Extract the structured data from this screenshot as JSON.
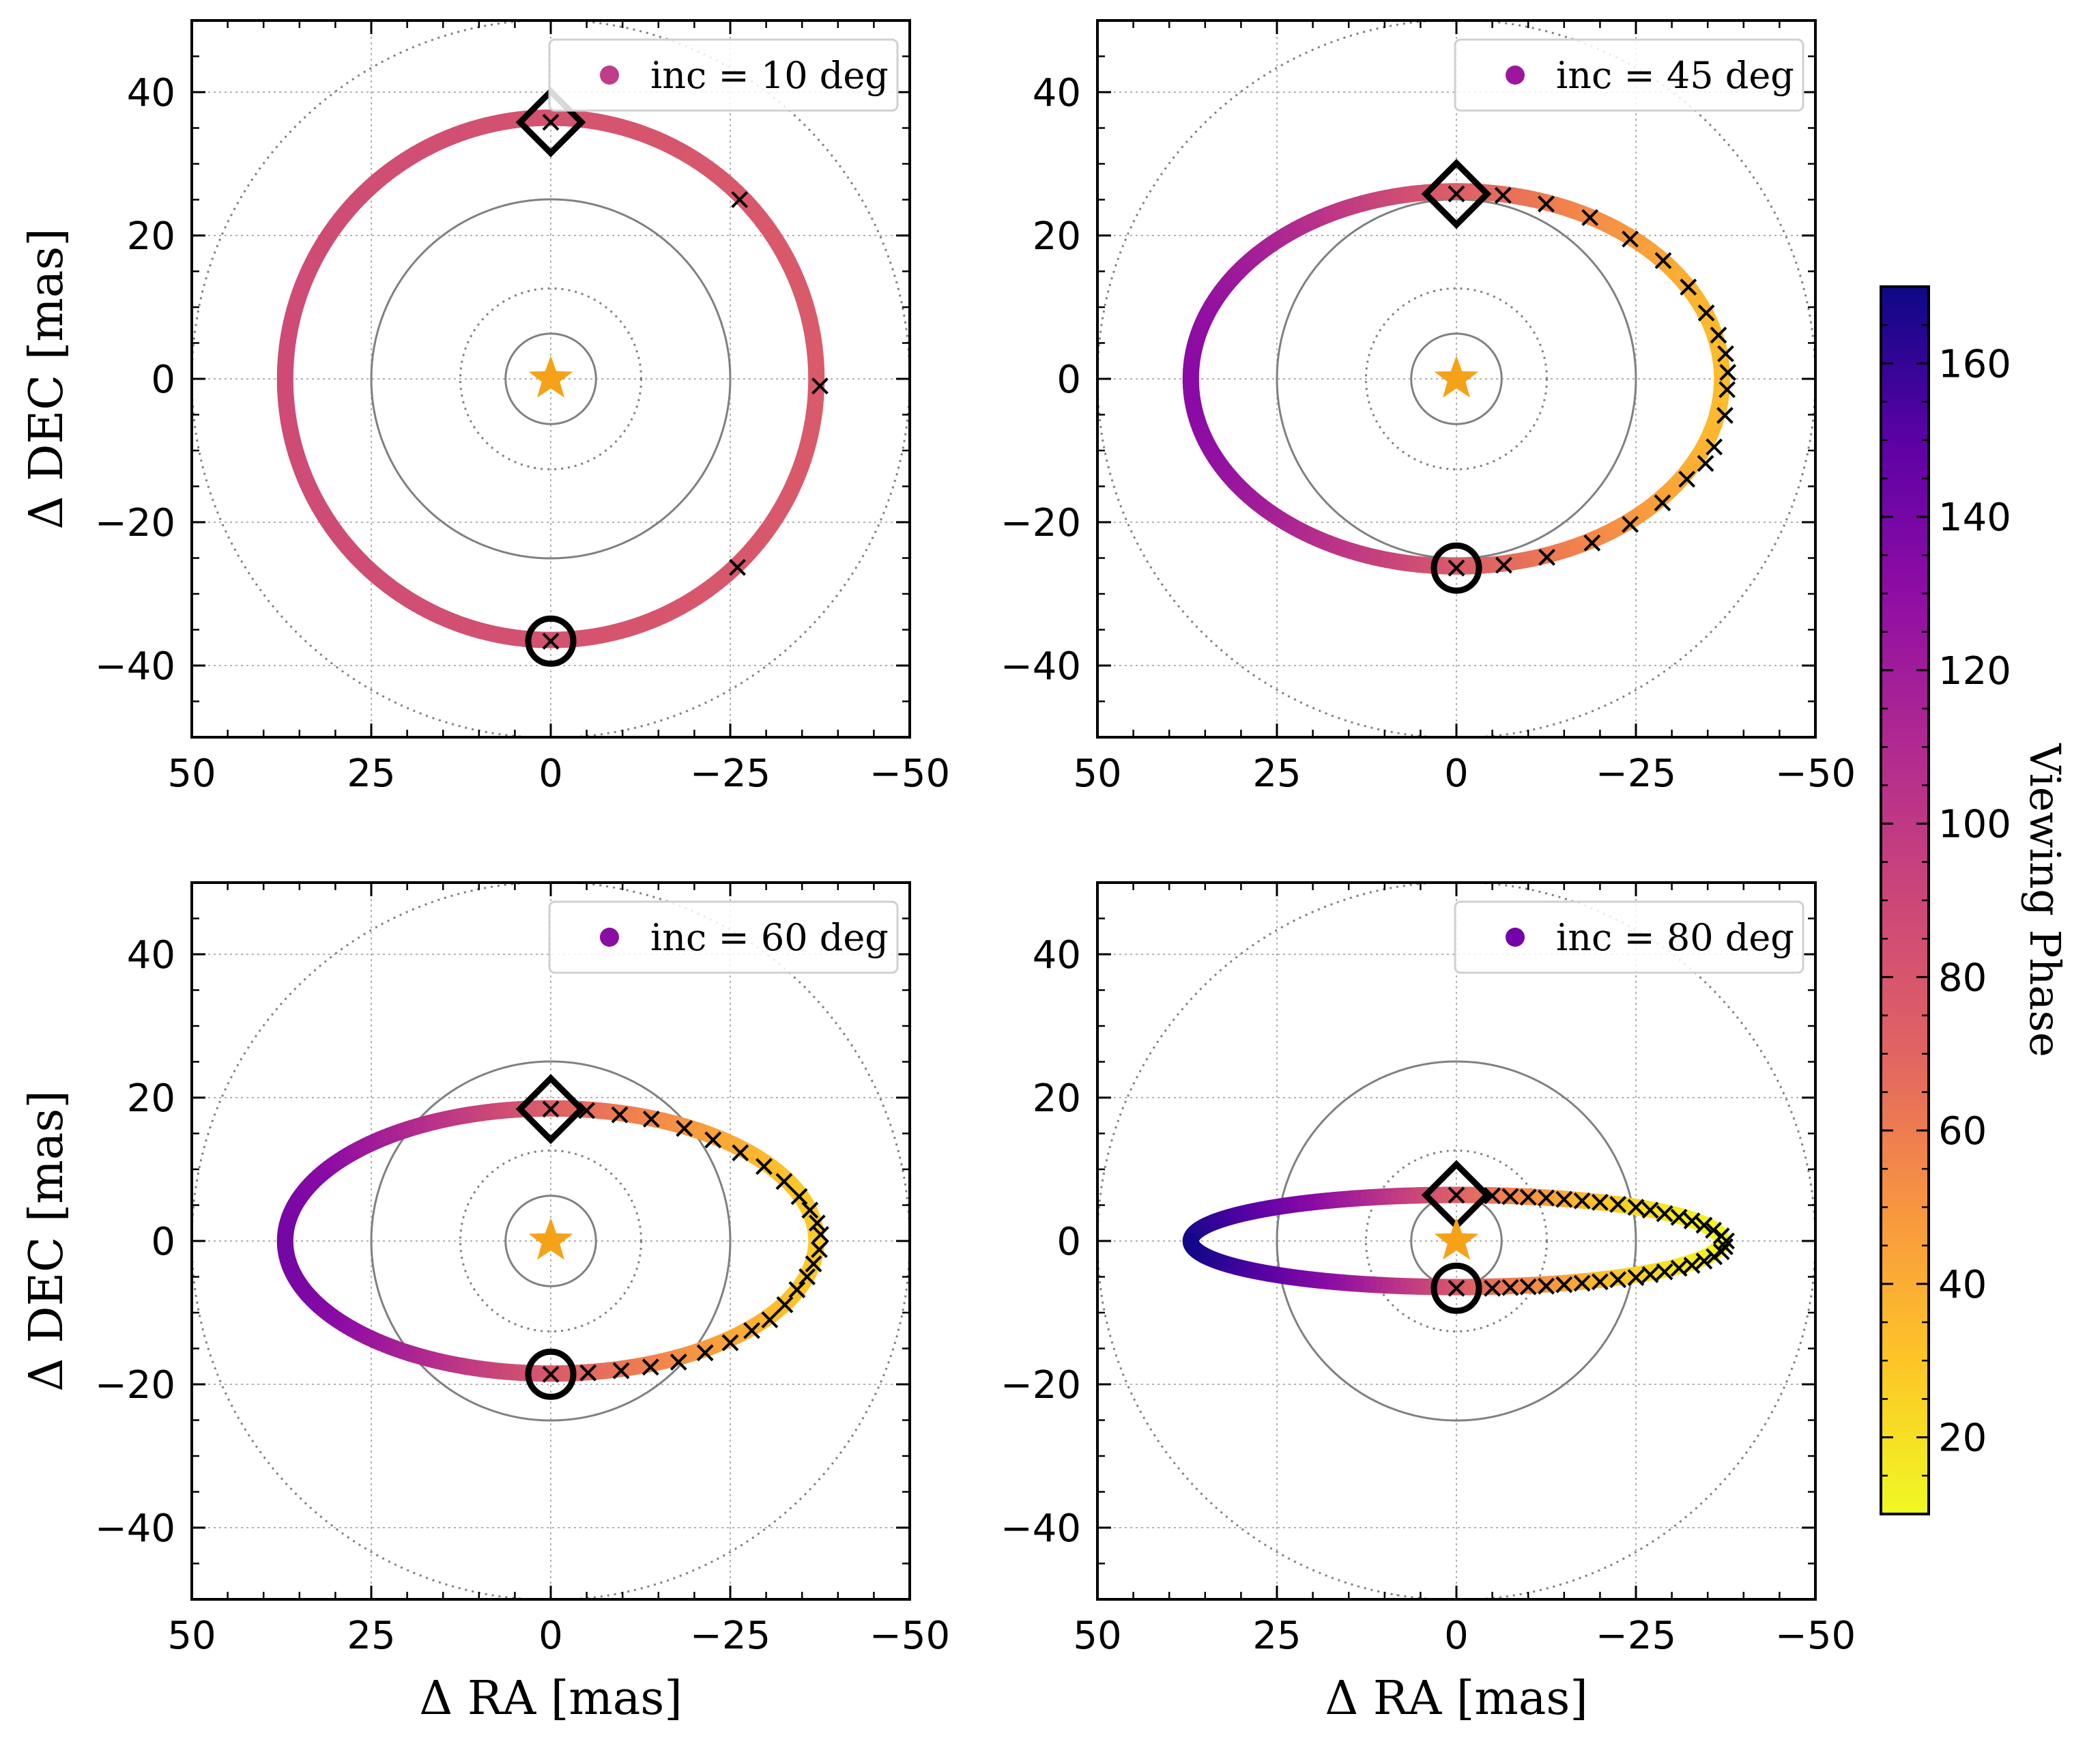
{
  "figure": {
    "colorbar": {
      "label": "Viewing Phase",
      "range": [
        10,
        170
      ],
      "ticks": [
        20,
        40,
        60,
        80,
        100,
        120,
        140,
        160
      ]
    },
    "colormap": "plasma_r"
  },
  "chart_data": [
    {
      "type": "scatter",
      "legend": "inc = 10 deg",
      "legend_color": "#c13d8a",
      "inclination_deg": 10,
      "xlabel": "",
      "ylabel": "Δ DEC [mas]",
      "xlim": [
        50,
        -50
      ],
      "ylim": [
        -50,
        50
      ],
      "x_ticks": [
        50,
        25,
        0,
        -25,
        -50
      ],
      "x_tick_labels": [
        "50",
        "25",
        "0",
        "−25",
        "−50"
      ],
      "y_ticks": [
        40,
        20,
        0,
        -20,
        -40
      ],
      "y_tick_labels": [
        "40",
        "20",
        "0",
        "−20",
        "−40"
      ],
      "grid": true,
      "legend_position": "top-right",
      "semimajor_axis": 37,
      "phase_range": [
        91,
        98
      ],
      "star": [
        0,
        0
      ],
      "diamond": [
        0,
        35.8
      ],
      "circle": [
        0,
        -36.6
      ],
      "x_markers": [
        [
          0,
          35.8
        ],
        [
          -26.3,
          25
        ],
        [
          -37.5,
          -1
        ],
        [
          -26,
          -26.3
        ],
        [
          0,
          -36.6
        ]
      ],
      "reference_circles": {
        "solid_radii": [
          6.3,
          25
        ],
        "dotted_radii": [
          12.6,
          50
        ]
      }
    },
    {
      "type": "scatter",
      "legend": "inc = 45 deg",
      "legend_color": "#9c179e",
      "inclination_deg": 45,
      "xlabel": "",
      "ylabel": "",
      "xlim": [
        50,
        -50
      ],
      "ylim": [
        -50,
        50
      ],
      "x_ticks": [
        50,
        25,
        0,
        -25,
        -50
      ],
      "x_tick_labels": [
        "50",
        "25",
        "0",
        "−25",
        "−50"
      ],
      "y_ticks": [
        40,
        20,
        0,
        -20,
        -40
      ],
      "y_tick_labels": [
        "40",
        "20",
        "0",
        "−20",
        "−40"
      ],
      "grid": true,
      "legend_position": "top-right",
      "semimajor_axis": 37,
      "phase_range": [
        50,
        130
      ],
      "star": [
        0,
        0
      ],
      "diamond": [
        0,
        25.8
      ],
      "circle": [
        0,
        -26.4
      ],
      "x_markers": [
        [
          0,
          25.8
        ],
        [
          -6.5,
          25.6
        ],
        [
          -12.5,
          24.4
        ],
        [
          -18.6,
          22.5
        ],
        [
          -24.2,
          19.5
        ],
        [
          -28.8,
          16.5
        ],
        [
          -32.3,
          12.8
        ],
        [
          -34.8,
          9.2
        ],
        [
          -36.5,
          6.1
        ],
        [
          -37.5,
          3.5
        ],
        [
          -37.8,
          0.9
        ],
        [
          -37.7,
          -1.5
        ],
        [
          -37.4,
          -5.1
        ],
        [
          -35.9,
          -9.5
        ],
        [
          -34.7,
          -11.8
        ],
        [
          -32.1,
          -14
        ],
        [
          -28.7,
          -17.3
        ],
        [
          -24.2,
          -20.3
        ],
        [
          -18.9,
          -22.9
        ],
        [
          -12.6,
          -24.9
        ],
        [
          -6.6,
          -26
        ],
        [
          0,
          -26.4
        ]
      ],
      "reference_circles": {
        "solid_radii": [
          6.3,
          25
        ],
        "dotted_radii": [
          12.6,
          50
        ]
      }
    },
    {
      "type": "scatter",
      "legend": "inc = 60 deg",
      "legend_color": "#8a0da4",
      "inclination_deg": 60,
      "xlabel": "Δ RA [mas]",
      "ylabel": "Δ DEC [mas]",
      "xlim": [
        50,
        -50
      ],
      "ylim": [
        -50,
        50
      ],
      "x_ticks": [
        50,
        25,
        0,
        -25,
        -50
      ],
      "x_tick_labels": [
        "50",
        "25",
        "0",
        "−25",
        "−50"
      ],
      "y_ticks": [
        40,
        20,
        0,
        -20,
        -40
      ],
      "y_tick_labels": [
        "40",
        "20",
        "0",
        "−20",
        "−40"
      ],
      "grid": true,
      "legend_position": "top-right",
      "semimajor_axis": 37,
      "phase_range": [
        42,
        138
      ],
      "star": [
        0,
        0
      ],
      "diamond": [
        0,
        18.4
      ],
      "circle": [
        0,
        -18.6
      ],
      "x_markers": [
        [
          0,
          18.4
        ],
        [
          -5,
          18.2
        ],
        [
          -9.6,
          17.6
        ],
        [
          -14,
          17
        ],
        [
          -18.6,
          15.7
        ],
        [
          -22.6,
          14.1
        ],
        [
          -26.4,
          12.3
        ],
        [
          -29.7,
          10.4
        ],
        [
          -32.5,
          8.3
        ],
        [
          -34.6,
          6.2
        ],
        [
          -36.1,
          4.3
        ],
        [
          -37.1,
          2.5
        ],
        [
          -37.6,
          0.9
        ],
        [
          -37.4,
          -1.2
        ],
        [
          -36.6,
          -3.2
        ],
        [
          -35.7,
          -5
        ],
        [
          -34.3,
          -6.8
        ],
        [
          -32.6,
          -8.9
        ],
        [
          -30.5,
          -11
        ],
        [
          -28,
          -12.5
        ],
        [
          -25,
          -14.2
        ],
        [
          -21.5,
          -15.6
        ],
        [
          -17.8,
          -16.9
        ],
        [
          -13.9,
          -17.6
        ],
        [
          -9.8,
          -18.1
        ],
        [
          -5.2,
          -18.4
        ],
        [
          0,
          -18.6
        ]
      ],
      "reference_circles": {
        "solid_radii": [
          6.3,
          25
        ],
        "dotted_radii": [
          12.6,
          50
        ]
      }
    },
    {
      "type": "scatter",
      "legend": "inc = 80 deg",
      "legend_color": "#7501a8",
      "inclination_deg": 80,
      "xlabel": "Δ RA [mas]",
      "ylabel": "",
      "xlim": [
        50,
        -50
      ],
      "ylim": [
        -50,
        50
      ],
      "x_ticks": [
        50,
        25,
        0,
        -25,
        -50
      ],
      "x_tick_labels": [
        "50",
        "25",
        "0",
        "−25",
        "−50"
      ],
      "y_ticks": [
        40,
        20,
        0,
        -20,
        -40
      ],
      "y_tick_labels": [
        "40",
        "20",
        "0",
        "−20",
        "−40"
      ],
      "grid": true,
      "legend_position": "top-right",
      "semimajor_axis": 37,
      "phase_range": [
        12,
        168
      ],
      "star": [
        0,
        0
      ],
      "diamond": [
        0,
        6.4
      ],
      "circle": [
        0,
        -6.6
      ],
      "x_markers": [
        [
          0,
          6.4
        ],
        [
          -5,
          6.3
        ],
        [
          -7.5,
          6.2
        ],
        [
          -10,
          6.1
        ],
        [
          -12.5,
          6
        ],
        [
          -15,
          5.8
        ],
        [
          -17.5,
          5.6
        ],
        [
          -20,
          5.4
        ],
        [
          -22.5,
          5.1
        ],
        [
          -25,
          4.7
        ],
        [
          -27,
          4.3
        ],
        [
          -29,
          3.8
        ],
        [
          -31,
          3.3
        ],
        [
          -32.8,
          2.8
        ],
        [
          -34.5,
          2.2
        ],
        [
          -35.8,
          1.5
        ],
        [
          -36.9,
          0.7
        ],
        [
          -37.6,
          0
        ],
        [
          -37.4,
          -0.8
        ],
        [
          -36.9,
          -1.5
        ],
        [
          -35.9,
          -2.2
        ],
        [
          -34.5,
          -2.8
        ],
        [
          -32.8,
          -3.4
        ],
        [
          -31,
          -3.8
        ],
        [
          -29,
          -4.3
        ],
        [
          -27,
          -4.7
        ],
        [
          -25,
          -5.1
        ],
        [
          -22.5,
          -5.4
        ],
        [
          -20,
          -5.7
        ],
        [
          -17.5,
          -5.9
        ],
        [
          -15,
          -6.1
        ],
        [
          -12.5,
          -6.3
        ],
        [
          -10,
          -6.4
        ],
        [
          -7.5,
          -6.5
        ],
        [
          -5,
          -6.6
        ],
        [
          0,
          -6.6
        ]
      ],
      "reference_circles": {
        "solid_radii": [
          6.3,
          25
        ],
        "dotted_radii": [
          12.6,
          50
        ]
      }
    }
  ]
}
